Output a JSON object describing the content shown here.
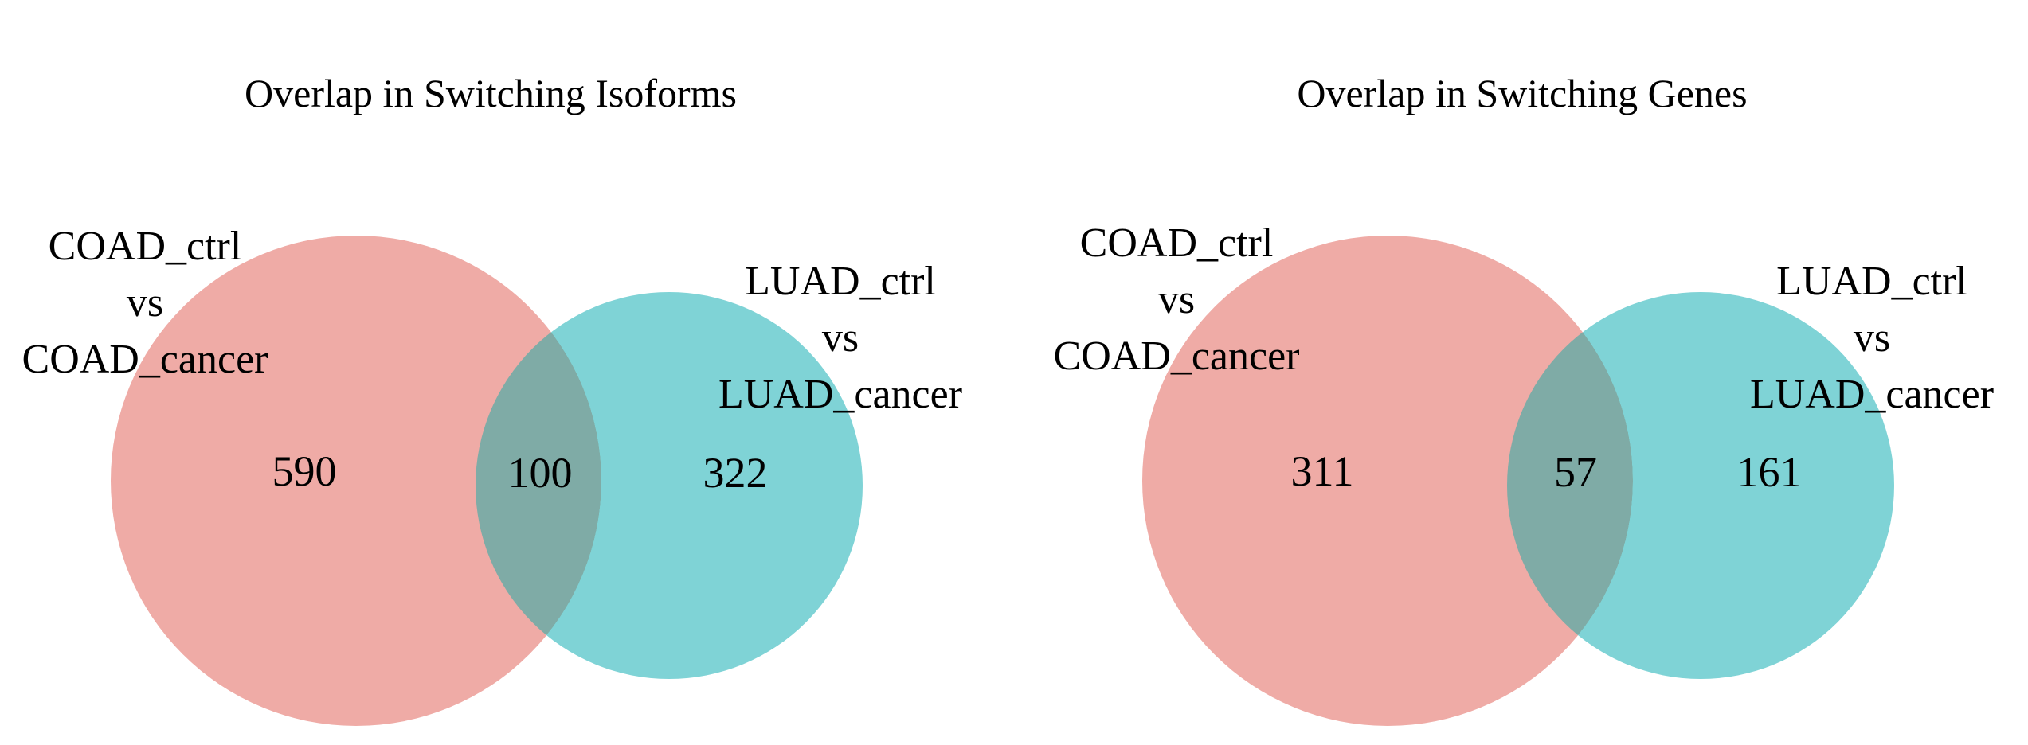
{
  "figure": {
    "background": "#ffffff",
    "text_color": "#000000",
    "coad_fill": "#efaba6",
    "luad_fill": "#7fd3d6",
    "overlap_fill": "#7faaa7"
  },
  "diagrams": [
    {
      "title": "Overlap in Switching Isoforms",
      "left_set": {
        "label_lines": [
          "COAD_ctrl",
          "vs",
          "COAD_cancer"
        ],
        "unique_count": "590",
        "color": "#efaba6"
      },
      "right_set": {
        "label_lines": [
          "LUAD_ctrl",
          "vs",
          "LUAD_cancer"
        ],
        "unique_count": "322",
        "color": "#7fd3d6"
      },
      "overlap_count": "100"
    },
    {
      "title": "Overlap in Switching Genes",
      "left_set": {
        "label_lines": [
          "COAD_ctrl",
          "vs",
          "COAD_cancer"
        ],
        "unique_count": "311",
        "color": "#efaba6"
      },
      "right_set": {
        "label_lines": [
          "LUAD_ctrl",
          "vs",
          "LUAD_cancer"
        ],
        "unique_count": "161",
        "color": "#7fd3d6"
      },
      "overlap_count": "57"
    }
  ],
  "chart_data": [
    {
      "type": "venn",
      "title": "Overlap in Switching Isoforms",
      "sets": [
        {
          "label": "COAD_ctrl vs COAD_cancer",
          "unique_count": 590,
          "color": "#efaba6"
        },
        {
          "label": "LUAD_ctrl vs LUAD_cancer",
          "unique_count": 322,
          "color": "#7fd3d6"
        }
      ],
      "overlap_count": 100,
      "overlap_color": "#7faaa7",
      "layout": "two-circle euler, areas proportional, black serif labels on white background"
    },
    {
      "type": "venn",
      "title": "Overlap in Switching Genes",
      "sets": [
        {
          "label": "COAD_ctrl vs COAD_cancer",
          "unique_count": 311,
          "color": "#efaba6"
        },
        {
          "label": "LUAD_ctrl vs LUAD_cancer",
          "unique_count": 161,
          "color": "#7fd3d6"
        }
      ],
      "overlap_count": 57,
      "overlap_color": "#7faaa7",
      "layout": "two-circle euler, areas proportional, black serif labels on white background"
    }
  ]
}
